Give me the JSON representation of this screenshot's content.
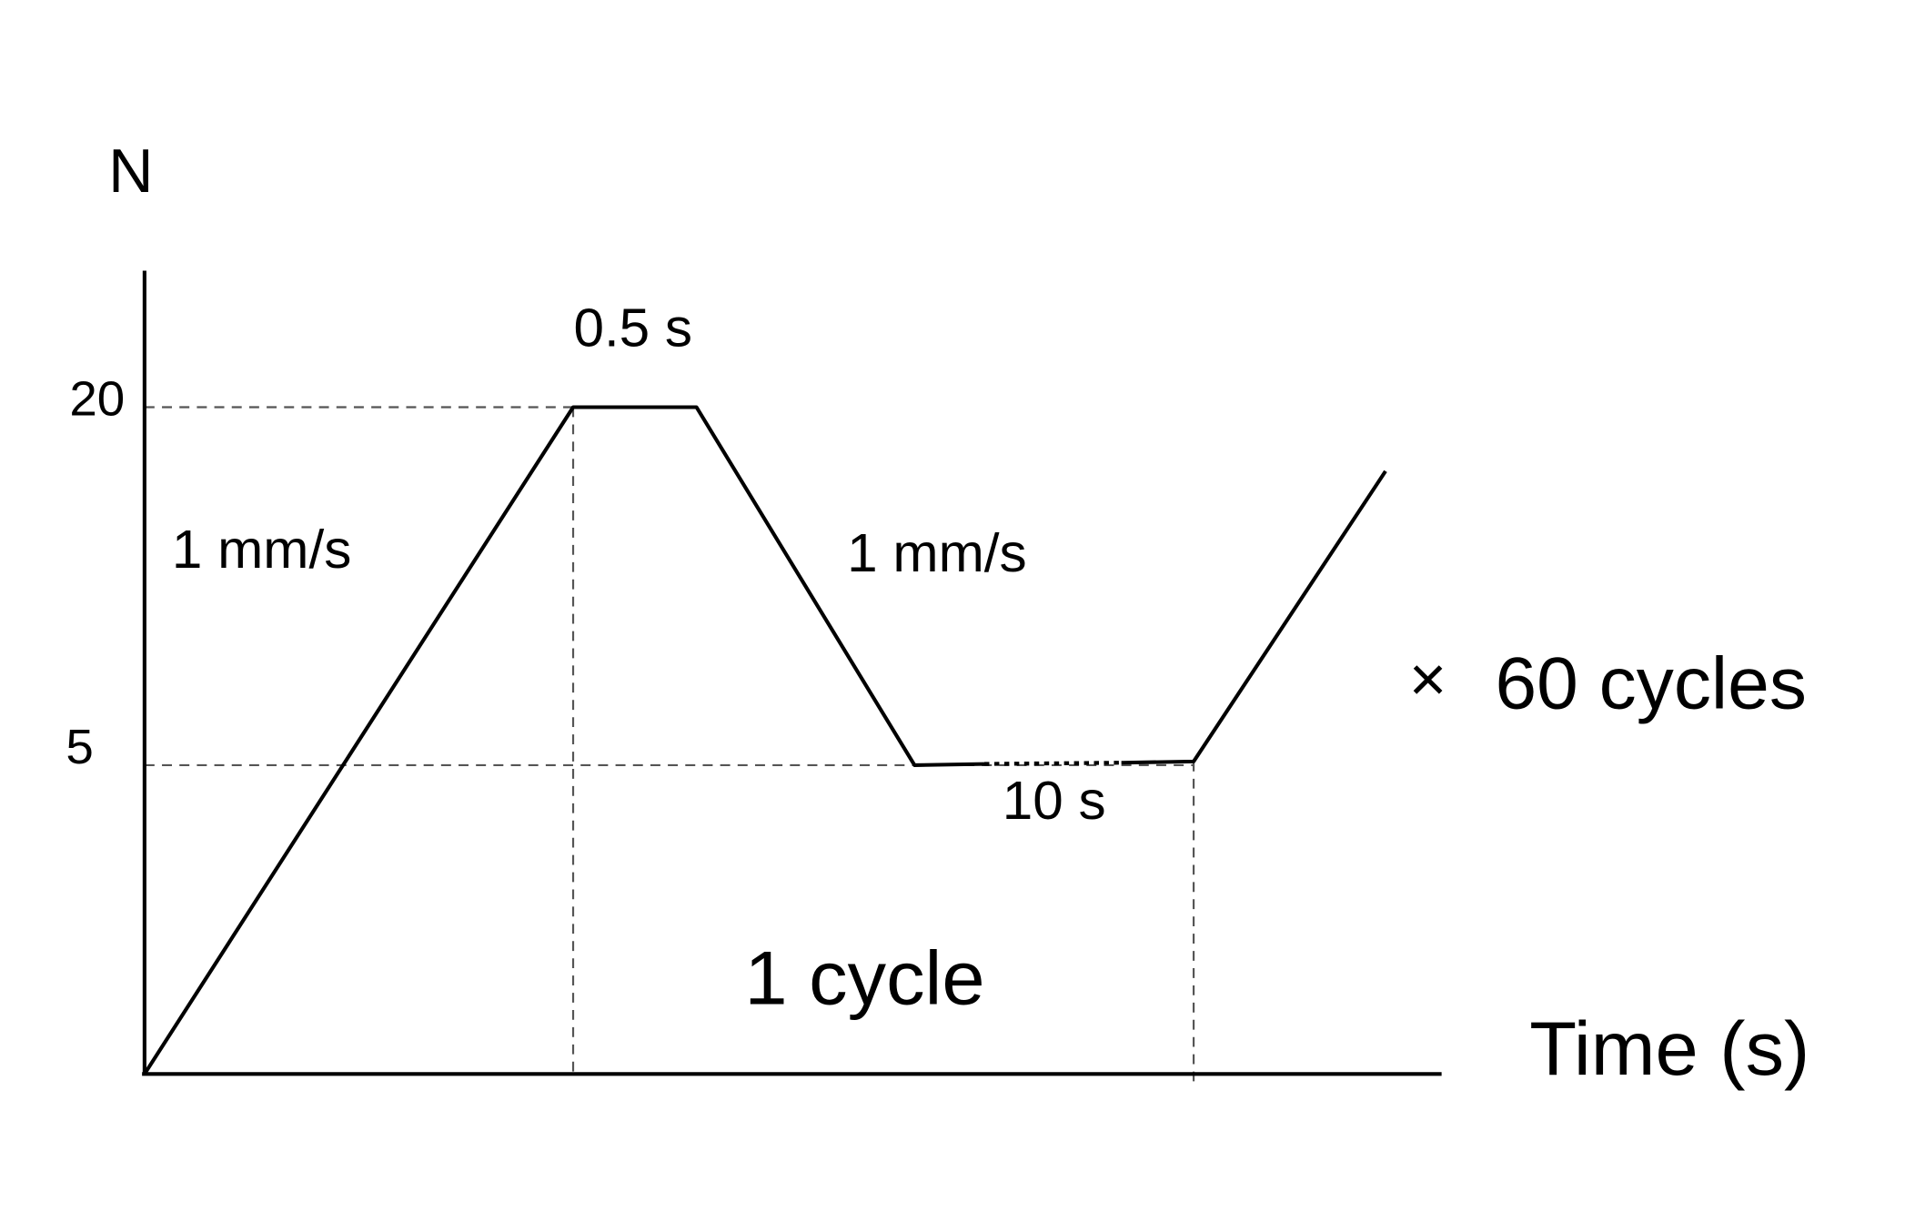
{
  "y_axis": {
    "label": "N",
    "ticks": [
      20,
      5
    ]
  },
  "x_axis": {
    "label": "Time (s)"
  },
  "annotations": {
    "hold_top": "0.5 s",
    "rise_rate": "1 mm/s",
    "fall_rate": "1 mm/s",
    "hold_bottom": "10 s",
    "cycle": "1 cycle",
    "times": "×",
    "repeat": "60 cycles"
  }
}
